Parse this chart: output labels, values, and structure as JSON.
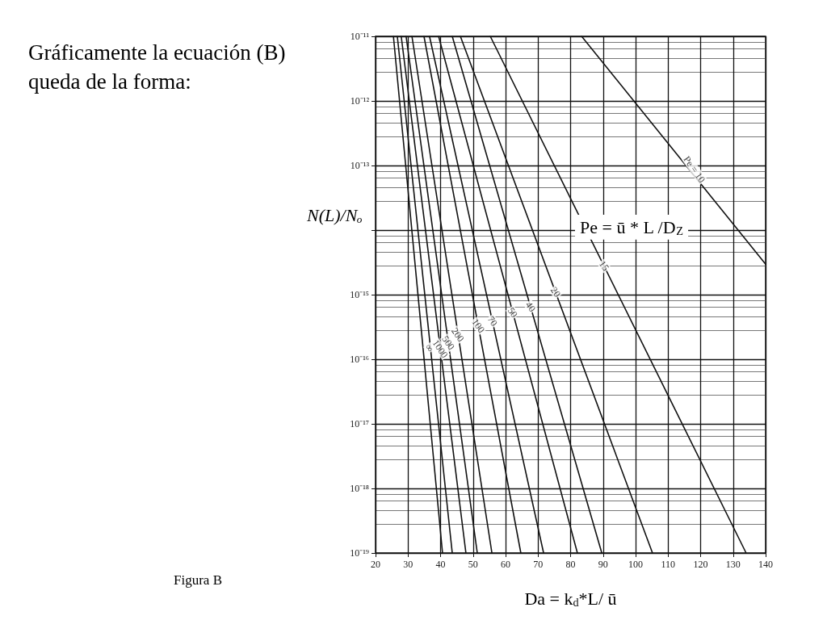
{
  "chart_data": {
    "type": "line",
    "title": "Gráficamente la ecuación (B) queda de la forma:",
    "xlabel": "Da = k$_{d}$*L/ ū",
    "ylabel": "N(L)/Nₒ",
    "log": "y",
    "grid": true,
    "marker": "none",
    "line_style": "solid",
    "xlim": [
      20,
      140
    ],
    "xticks": [
      20,
      30,
      40,
      50,
      60,
      70,
      80,
      90,
      100,
      110,
      120,
      130,
      140
    ],
    "ylim": [
      1e-19,
      1e-11
    ],
    "yticks": [
      {
        "value": 1e-19,
        "label": "10⁻¹⁹"
      },
      {
        "value": 1e-18,
        "label": "10⁻¹⁸"
      },
      {
        "value": 1e-17,
        "label": "10⁻¹⁷"
      },
      {
        "value": 1e-16,
        "label": "10⁻¹⁶"
      },
      {
        "value": 1e-15,
        "label": "10⁻¹⁵"
      },
      {
        "value": 1e-14,
        "label": null
      },
      {
        "value": 1e-13,
        "label": "10⁻¹³"
      },
      {
        "value": 1e-12,
        "label": "10⁻¹²"
      },
      {
        "value": 1e-11,
        "label": "10⁻¹¹"
      }
    ],
    "series": [
      {
        "color": "#111111",
        "x": [
          83.4,
          140
        ],
        "values": [
          1e-11,
          2.97e-15
        ]
      },
      {
        "color": "#111111",
        "x": [
          55.3,
          134
        ],
        "values": [
          1e-11,
          1e-19
        ]
      },
      {
        "color": "#111111",
        "x": [
          46.1,
          105.2
        ],
        "values": [
          1e-11,
          1e-19
        ]
      },
      {
        "color": "#111111",
        "x": [
          43.6,
          89.6
        ],
        "values": [
          1e-11,
          1e-19
        ]
      },
      {
        "color": "#111111",
        "x": [
          39.4,
          82.1
        ],
        "values": [
          1e-11,
          1e-19
        ]
      },
      {
        "color": "#111111",
        "x": [
          36.6,
          71.7
        ],
        "values": [
          1e-11,
          1e-19
        ]
      },
      {
        "color": "#111111",
        "x": [
          34.9,
          64.7
        ],
        "values": [
          1e-11,
          1e-19
        ]
      },
      {
        "color": "#111111",
        "x": [
          31.2,
          55.8
        ],
        "values": [
          1e-11,
          1e-19
        ]
      },
      {
        "color": "#111111",
        "x": [
          29.4,
          51.3
        ],
        "values": [
          1e-11,
          1e-19
        ]
      },
      {
        "color": "#111111",
        "x": [
          27.9,
          47.8
        ],
        "values": [
          1e-11,
          1e-19
        ]
      },
      {
        "color": "#111111",
        "x": [
          26.7,
          43.6
        ],
        "values": [
          1e-11,
          1e-19
        ]
      },
      {
        "color": "#111111",
        "x": [
          25.5,
          40.6
        ],
        "values": [
          1e-11,
          1e-19
        ]
      }
    ],
    "annotations": [
      {
        "text": "Pe = 10",
        "x": 118.1,
        "y": 8.7e-14
      },
      {
        "text": "15",
        "x": 90.3,
        "y": 2.8e-15
      },
      {
        "text": "20",
        "x": 75.4,
        "y": 1.1e-15
      },
      {
        "text": "40",
        "x": 67.7,
        "y": 6.5e-16
      },
      {
        "text": "50",
        "x": 62.2,
        "y": 5.3e-16
      },
      {
        "text": "70",
        "x": 56.0,
        "y": 3.9e-16
      },
      {
        "text": "100",
        "x": 51.6,
        "y": 3.3e-16
      },
      {
        "text": "200",
        "x": 45.3,
        "y": 2.4e-16
      },
      {
        "text": "500",
        "x": 42.4,
        "y": 1.8e-16
      },
      {
        "text": "1000",
        "x": 39.9,
        "y": 1.45e-16
      },
      {
        "text": "∞",
        "x": 36.6,
        "y": 1.5e-16
      },
      "Pe = ū * L /D$_{Z}$",
      "Figura B"
    ]
  }
}
